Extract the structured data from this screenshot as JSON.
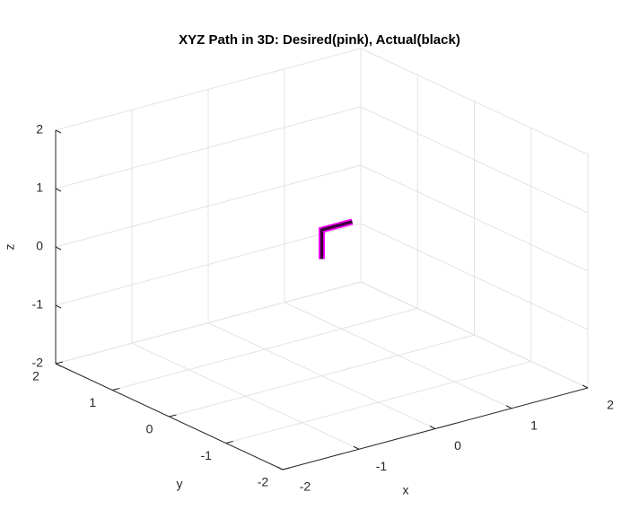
{
  "chart_data": {
    "type": "line3d",
    "title": "XYZ Path in 3D: Desired(pink), Actual(black)",
    "xlabel": "x",
    "ylabel": "y",
    "zlabel": "z",
    "xlim": [
      -2,
      2
    ],
    "ylim": [
      -2,
      2
    ],
    "zlim": [
      -2,
      2
    ],
    "xticks": [
      -2,
      -1,
      0,
      1,
      2
    ],
    "yticks": [
      -2,
      -1,
      0,
      1,
      2
    ],
    "zticks": [
      -2,
      -1,
      0,
      1,
      2
    ],
    "grid": true,
    "series": [
      {
        "color": "#ff00ff",
        "x": [
          0,
          0,
          0.4
        ],
        "y": [
          0,
          0,
          0
        ],
        "z": [
          0,
          0.5,
          0.5
        ]
      },
      {
        "color": "#000000",
        "x": [
          0,
          0,
          0.4
        ],
        "y": [
          0,
          0,
          0
        ],
        "z": [
          0,
          0.5,
          0.5
        ]
      }
    ]
  }
}
